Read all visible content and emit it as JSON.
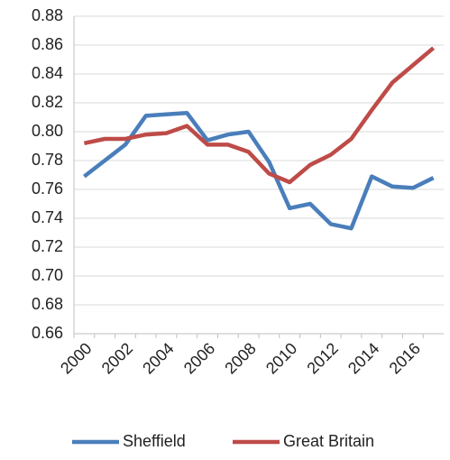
{
  "chart_data": {
    "type": "line",
    "categories": [
      "2000",
      null,
      "2002",
      null,
      "2004",
      null,
      "2006",
      null,
      "2008",
      null,
      "2010",
      null,
      "2012",
      null,
      "2014",
      null,
      "2016",
      null
    ],
    "series": [
      {
        "name": "Sheffield",
        "color": "#4a7ebb",
        "values": [
          0.769,
          0.78,
          0.791,
          0.811,
          0.812,
          0.813,
          0.794,
          0.798,
          0.8,
          0.779,
          0.747,
          0.75,
          0.736,
          0.733,
          0.769,
          0.762,
          0.761,
          0.768
        ]
      },
      {
        "name": "Great Britain",
        "color": "#be4b48",
        "values": [
          0.792,
          0.795,
          0.795,
          0.798,
          0.799,
          0.804,
          0.791,
          0.791,
          0.786,
          0.771,
          0.765,
          0.777,
          0.784,
          0.795,
          0.815,
          0.834,
          0.846,
          0.858
        ]
      }
    ],
    "ylim": [
      0.66,
      0.88
    ],
    "yticks": [
      0.66,
      0.68,
      {
        "value": 0.7,
        "label": "0.70"
      },
      0.72,
      0.74,
      0.76,
      0.78,
      {
        "value": 0.8,
        "label": "0.80"
      },
      0.82,
      0.84,
      0.86,
      0.88
    ],
    "grid": true,
    "legend": "bottom"
  }
}
